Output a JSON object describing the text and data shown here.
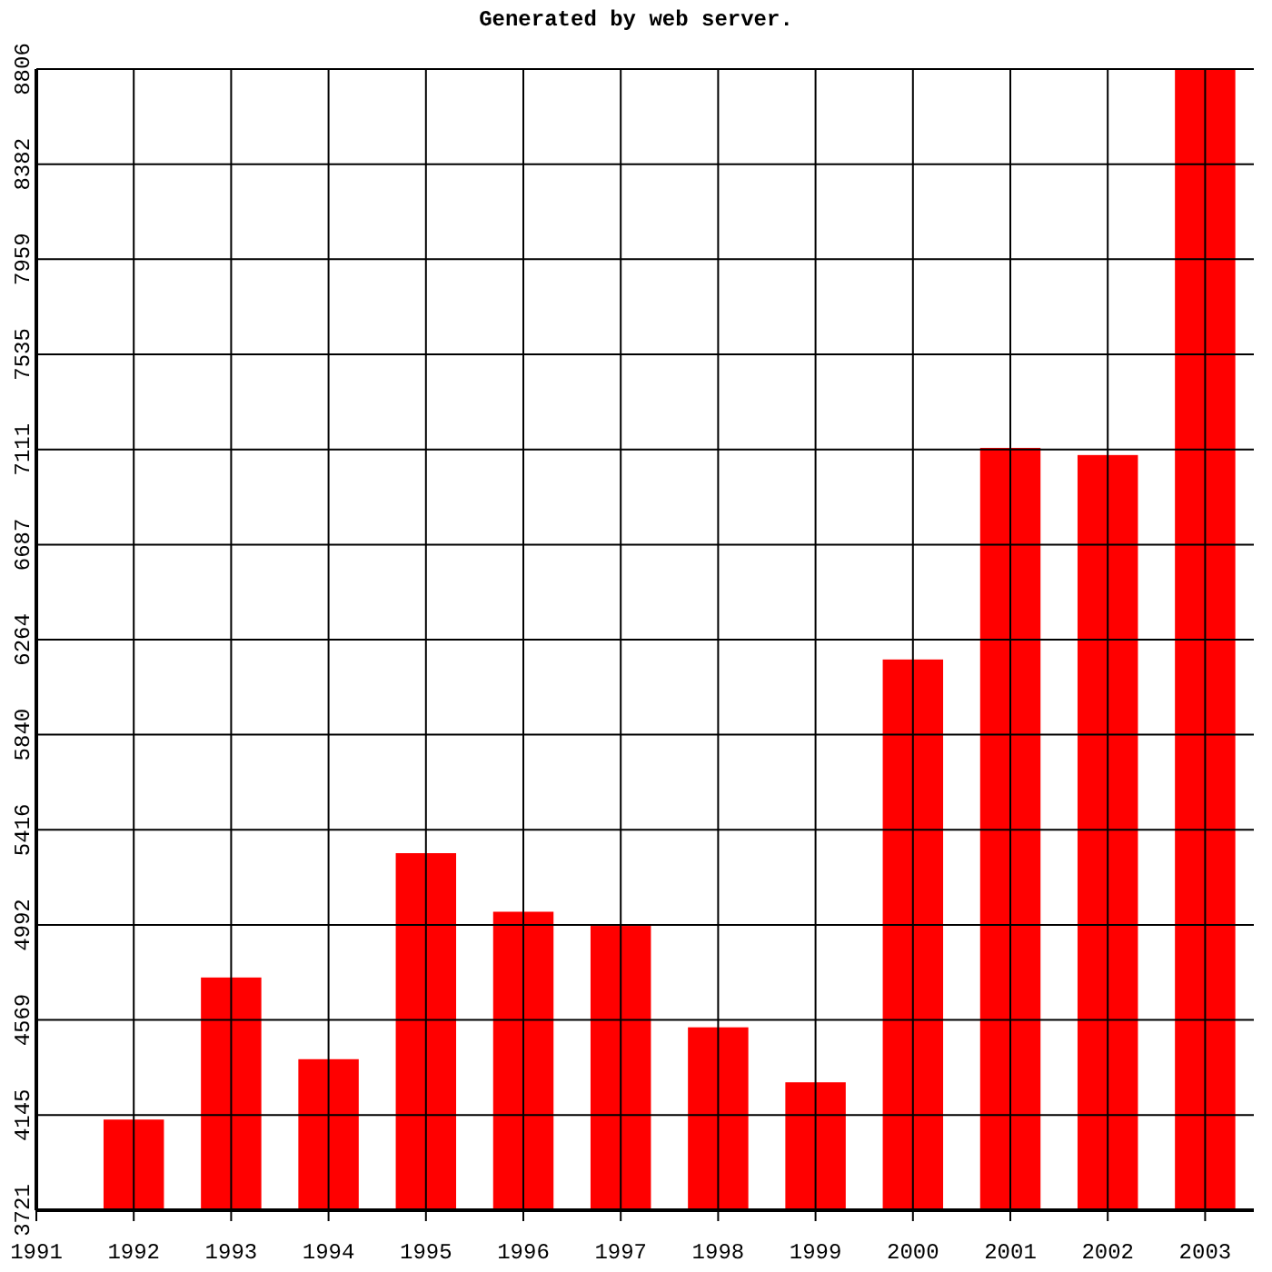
{
  "chart_data": {
    "type": "bar",
    "title": "Generated by web server.",
    "x": [
      1992,
      1993,
      1994,
      1995,
      1996,
      1997,
      1998,
      1999,
      2000,
      2001,
      2002,
      2003
    ],
    "values": [
      4125,
      4758,
      4394,
      5312,
      5051,
      4988,
      4536,
      4291,
      6175,
      7118,
      7086,
      8806
    ],
    "color": "#ff0000",
    "xlim": [
      1991,
      2003.5
    ],
    "xticks": [
      1991,
      1992,
      1993,
      1994,
      1995,
      1996,
      1997,
      1998,
      1999,
      2000,
      2001,
      2002,
      2003
    ],
    "ylim": [
      3721,
      8806
    ],
    "yticks": [
      3721,
      4145,
      4569,
      4992,
      5416,
      5840,
      6264,
      6687,
      7111,
      7535,
      7959,
      8382,
      8806
    ],
    "grid": true
  }
}
